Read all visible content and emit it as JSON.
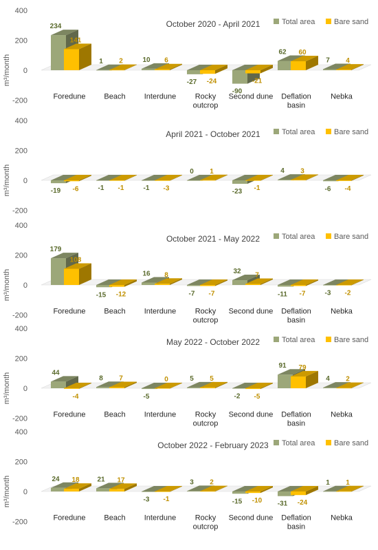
{
  "chart_data": [
    {
      "type": "bar",
      "title": "October 2020 - April 2021",
      "ylabel": "m³/month",
      "ylim": [
        -200,
        400
      ],
      "yticks": [
        "400",
        "200",
        "0",
        "-200"
      ],
      "categories": [
        "Foredune",
        "Beach",
        "Interdune",
        "Rocky outcrop",
        "Second dune",
        "Deflation basin",
        "Nebka"
      ],
      "series": [
        {
          "name": "Total area",
          "values": [
            234,
            1,
            10,
            -27,
            -90,
            62,
            7
          ]
        },
        {
          "name": "Bare sand",
          "values": [
            141,
            2,
            6,
            -24,
            -21,
            60,
            4
          ]
        }
      ],
      "show_category_labels": true
    },
    {
      "type": "bar",
      "title": "April 2021 - October 2021",
      "ylabel": "m³/month",
      "ylim": [
        -200,
        400
      ],
      "yticks": [
        "400",
        "200",
        "0",
        "-200"
      ],
      "categories": [
        "Foredune",
        "Beach",
        "Interdune",
        "Rocky outcrop",
        "Second dune",
        "Deflation basin",
        "Nebka"
      ],
      "series": [
        {
          "name": "Total area",
          "values": [
            -19,
            -1,
            -1,
            0,
            -23,
            4,
            -6
          ]
        },
        {
          "name": "Bare sand",
          "values": [
            -6,
            -1,
            -3,
            1,
            -1,
            3,
            -4
          ]
        }
      ],
      "show_category_labels": false
    },
    {
      "type": "bar",
      "title": "October 2021 - May 2022",
      "ylabel": "m³/month",
      "ylim": [
        -200,
        400
      ],
      "yticks": [
        "400",
        "200",
        "0",
        "-200"
      ],
      "categories": [
        "Foredune",
        "Beach",
        "Interdune",
        "Rocky outcrop",
        "Second dune",
        "Deflation basin",
        "Nebka"
      ],
      "series": [
        {
          "name": "Total area",
          "values": [
            179,
            -15,
            16,
            -7,
            32,
            -11,
            -3
          ]
        },
        {
          "name": "Bare sand",
          "values": [
            108,
            -12,
            8,
            -7,
            7,
            -7,
            -2
          ]
        }
      ],
      "show_category_labels": true
    },
    {
      "type": "bar",
      "title": "May 2022 - October 2022",
      "ylabel": "m³/month",
      "ylim": [
        -200,
        400
      ],
      "yticks": [
        "400",
        "200",
        "0",
        "-200"
      ],
      "categories": [
        "Foredune",
        "Beach",
        "Interdune",
        "Rocky outcrop",
        "Second dune",
        "Deflation basin",
        "Nebka"
      ],
      "series": [
        {
          "name": "Total area",
          "values": [
            44,
            8,
            -5,
            5,
            -2,
            91,
            4
          ]
        },
        {
          "name": "Bare sand",
          "values": [
            -4,
            7,
            0,
            5,
            -5,
            79,
            2
          ]
        }
      ],
      "show_category_labels": true
    },
    {
      "type": "bar",
      "title": "October 2022 - February 2023",
      "ylabel": "m³/month",
      "ylim": [
        -200,
        400
      ],
      "yticks": [
        "400",
        "200",
        "0",
        "-200"
      ],
      "categories": [
        "Foredune",
        "Beach",
        "Interdune",
        "Rocky outcrop",
        "Second dune",
        "Deflation basin",
        "Nebka"
      ],
      "series": [
        {
          "name": "Total area",
          "values": [
            24,
            21,
            -3,
            3,
            -15,
            -31,
            1
          ]
        },
        {
          "name": "Bare sand",
          "values": [
            18,
            17,
            -1,
            2,
            -10,
            -24,
            1
          ]
        }
      ],
      "show_category_labels": true
    }
  ],
  "colors": {
    "total_area": "#9ca779",
    "bare_sand": "#ffc000",
    "total_area_label": "#5a6a2c",
    "bare_sand_label": "#c09000",
    "axis_text": "#595959",
    "zero_line": "#d9d9d9"
  }
}
